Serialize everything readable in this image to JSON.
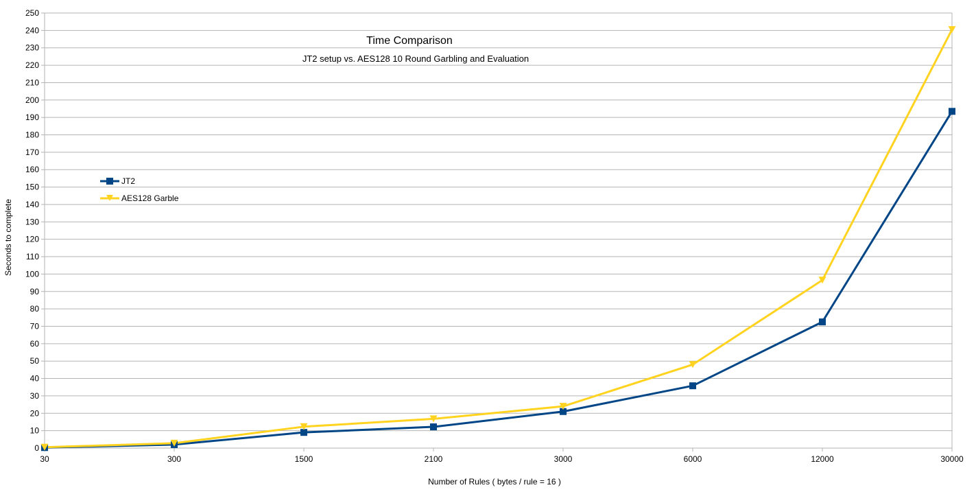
{
  "chart_data": {
    "type": "line",
    "title": "Time Comparison",
    "subtitle": "JT2 setup vs. AES128 10 Round Garbling and Evaluation",
    "xlabel": "Number of Rules ( bytes / rule = 16 )",
    "ylabel": "Seconds to complete",
    "categories": [
      "30",
      "300",
      "1500",
      "2100",
      "3000",
      "6000",
      "12000",
      "30000"
    ],
    "ylim": [
      0,
      250
    ],
    "ytick_step": 10,
    "grid": "horizontal",
    "legend_position": "left",
    "series": [
      {
        "name": "JT2",
        "color": "#004586",
        "marker": "square",
        "values": [
          0.3,
          2,
          9,
          12.2,
          21,
          35.8,
          72.5,
          193.5
        ]
      },
      {
        "name": "AES128 Garble",
        "color": "#ffd320",
        "marker": "triangle-down",
        "values": [
          0.5,
          2.8,
          12.3,
          16.8,
          24,
          48,
          96.5,
          240.5
        ]
      }
    ]
  }
}
